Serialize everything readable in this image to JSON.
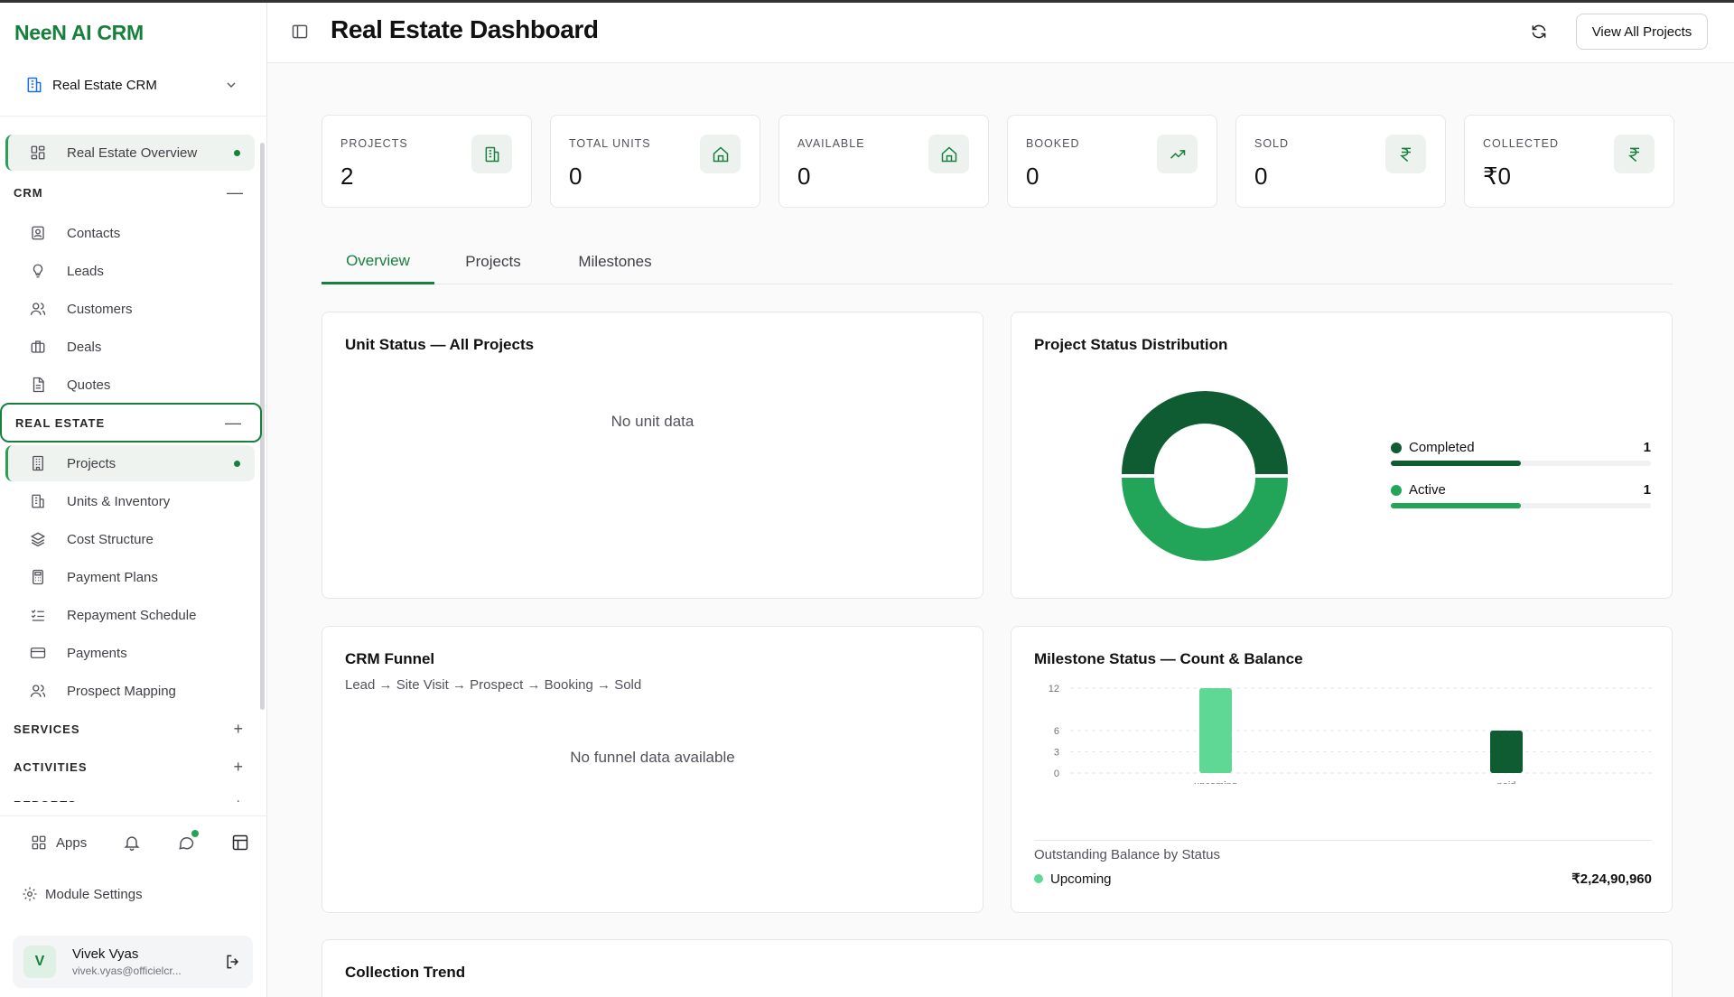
{
  "sidebar": {
    "brand": "NeeN AI CRM",
    "crm_switch": "Real Estate CRM",
    "overview": "Real Estate Overview",
    "sections": {
      "crm": "CRM",
      "real_estate": "REAL ESTATE",
      "services": "SERVICES",
      "activities": "ACTIVITIES",
      "reports": "REPORTS"
    },
    "crm_items": [
      "Contacts",
      "Leads",
      "Customers",
      "Deals",
      "Quotes"
    ],
    "re_items": [
      "Projects",
      "Units & Inventory",
      "Cost Structure",
      "Payment Plans",
      "Repayment Schedule",
      "Payments",
      "Prospect Mapping"
    ],
    "apps": "Apps",
    "module_settings": "Module Settings",
    "user": {
      "initial": "V",
      "name": "Vivek Vyas",
      "email": "vivek.vyas@officielcr..."
    }
  },
  "header": {
    "title": "Real Estate Dashboard",
    "view_all": "View All Projects"
  },
  "stats": [
    {
      "label": "PROJECTS",
      "value": "2",
      "icon": "building-icon"
    },
    {
      "label": "TOTAL UNITS",
      "value": "0",
      "icon": "home-icon"
    },
    {
      "label": "AVAILABLE",
      "value": "0",
      "icon": "home-icon"
    },
    {
      "label": "BOOKED",
      "value": "0",
      "icon": "trending-up-icon"
    },
    {
      "label": "SOLD",
      "value": "0",
      "icon": "rupee-icon"
    },
    {
      "label": "COLLECTED",
      "value": "₹0",
      "icon": "rupee-icon"
    }
  ],
  "tabs": [
    "Overview",
    "Projects",
    "Milestones"
  ],
  "unit_status": {
    "title": "Unit Status — All Projects",
    "empty": "No unit data"
  },
  "project_status": {
    "title": "Project Status Distribution",
    "items": [
      {
        "label": "Completed",
        "count": "1",
        "color": "#0f5c32",
        "share": 0.5
      },
      {
        "label": "Active",
        "count": "1",
        "color": "#22a559",
        "share": 0.5
      }
    ]
  },
  "crm_funnel": {
    "title": "CRM Funnel",
    "subtitle": "Lead → Site Visit → Prospect → Booking → Sold",
    "empty": "No funnel data available"
  },
  "milestone": {
    "title": "Milestone Status — Count & Balance",
    "outstanding_label": "Outstanding Balance by Status",
    "outstanding": [
      {
        "label": "Upcoming",
        "amount": "₹2,24,90,960",
        "color": "#5fd896"
      }
    ]
  },
  "chart_data": {
    "type": "bar",
    "categories": [
      "upcoming",
      "paid"
    ],
    "values": [
      12,
      6
    ],
    "colors": [
      "#5fd896",
      "#0f5c32"
    ],
    "yticks": [
      0,
      3,
      6,
      12
    ],
    "ylim": [
      0,
      12
    ],
    "grid": true
  },
  "collection_trend": {
    "title": "Collection Trend"
  }
}
